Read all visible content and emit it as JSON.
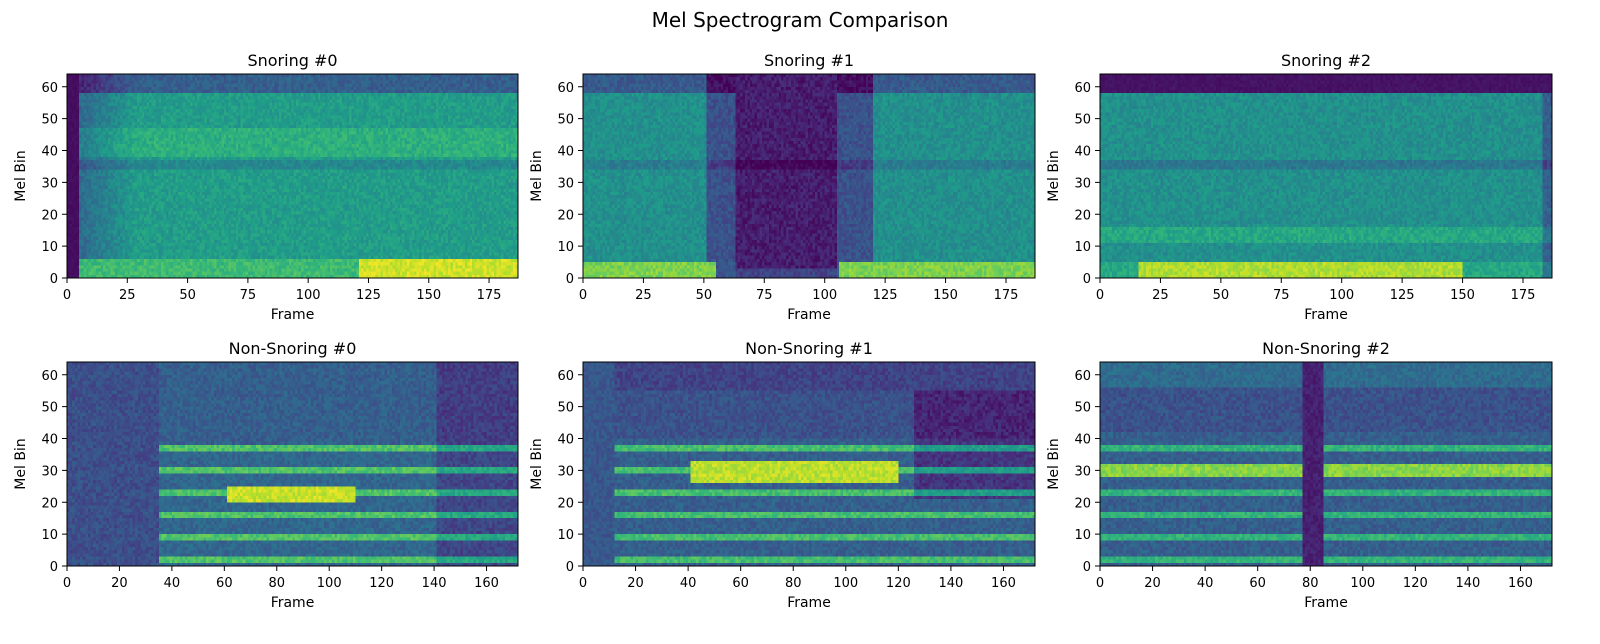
{
  "figure": {
    "title": "Mel Spectrogram Comparison"
  },
  "chart_data": [
    {
      "type": "heatmap",
      "title": "Snoring #0",
      "xlabel": "Frame",
      "ylabel": "Mel Bin",
      "xlim": [
        0,
        187
      ],
      "ylim": [
        0,
        64
      ],
      "frames": 187,
      "mel_bins": 64,
      "xticks": [
        0,
        25,
        50,
        75,
        100,
        125,
        150,
        175
      ],
      "yticks": [
        0,
        10,
        20,
        30,
        40,
        50,
        60
      ],
      "colormap": "viridis"
    },
    {
      "type": "heatmap",
      "title": "Snoring #1",
      "xlabel": "Frame",
      "ylabel": "Mel Bin",
      "xlim": [
        0,
        187
      ],
      "ylim": [
        0,
        64
      ],
      "frames": 187,
      "mel_bins": 64,
      "xticks": [
        0,
        25,
        50,
        75,
        100,
        125,
        150,
        175
      ],
      "yticks": [
        0,
        10,
        20,
        30,
        40,
        50,
        60
      ],
      "colormap": "viridis"
    },
    {
      "type": "heatmap",
      "title": "Snoring #2",
      "xlabel": "Frame",
      "ylabel": "Mel Bin",
      "xlim": [
        0,
        187
      ],
      "ylim": [
        0,
        64
      ],
      "frames": 187,
      "mel_bins": 64,
      "xticks": [
        0,
        25,
        50,
        75,
        100,
        125,
        150,
        175
      ],
      "yticks": [
        0,
        10,
        20,
        30,
        40,
        50,
        60
      ],
      "colormap": "viridis"
    },
    {
      "type": "heatmap",
      "title": "Non-Snoring #0",
      "xlabel": "Frame",
      "ylabel": "Mel Bin",
      "xlim": [
        0,
        172
      ],
      "ylim": [
        0,
        64
      ],
      "frames": 172,
      "mel_bins": 64,
      "xticks": [
        0,
        20,
        40,
        60,
        80,
        100,
        120,
        140,
        160
      ],
      "yticks": [
        0,
        10,
        20,
        30,
        40,
        50,
        60
      ],
      "colormap": "viridis"
    },
    {
      "type": "heatmap",
      "title": "Non-Snoring #1",
      "xlabel": "Frame",
      "ylabel": "Mel Bin",
      "xlim": [
        0,
        172
      ],
      "ylim": [
        0,
        64
      ],
      "frames": 172,
      "mel_bins": 64,
      "xticks": [
        0,
        20,
        40,
        60,
        80,
        100,
        120,
        140,
        160
      ],
      "yticks": [
        0,
        10,
        20,
        30,
        40,
        50,
        60
      ],
      "colormap": "viridis"
    },
    {
      "type": "heatmap",
      "title": "Non-Snoring #2",
      "xlabel": "Frame",
      "ylabel": "Mel Bin",
      "xlim": [
        0,
        172
      ],
      "ylim": [
        0,
        64
      ],
      "frames": 172,
      "mel_bins": 64,
      "xticks": [
        0,
        20,
        40,
        60,
        80,
        100,
        120,
        140,
        160
      ],
      "yticks": [
        0,
        10,
        20,
        30,
        40,
        50,
        60
      ],
      "colormap": "viridis"
    }
  ]
}
